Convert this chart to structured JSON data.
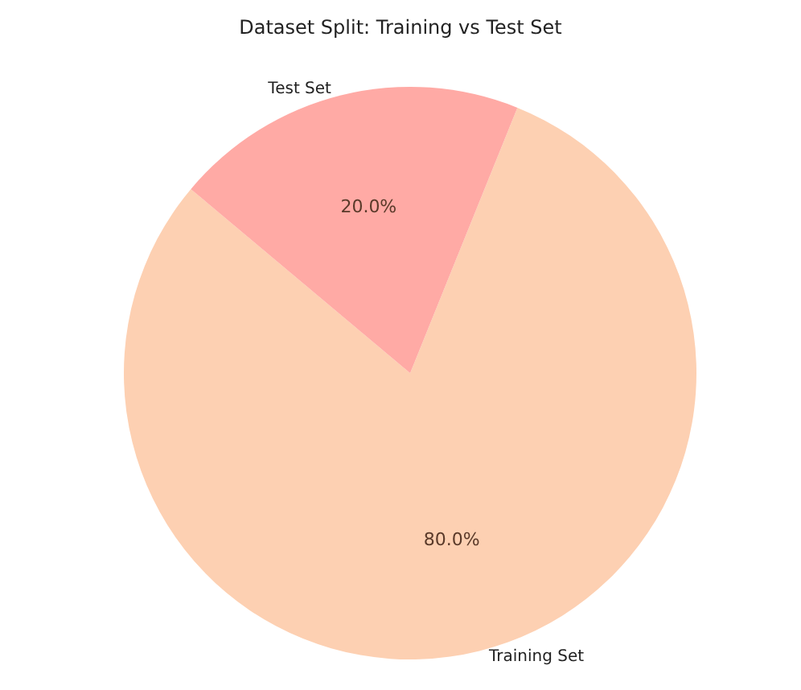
{
  "chart_data": {
    "type": "pie",
    "title": "Dataset Split: Training vs Test Set",
    "categories": [
      "Training Set",
      "Test Set"
    ],
    "values": [
      80,
      20
    ],
    "value_labels": [
      "80.0%",
      "20.0%"
    ],
    "colors": [
      "#fdd0b2",
      "#ffaaa5"
    ],
    "legend": false
  }
}
